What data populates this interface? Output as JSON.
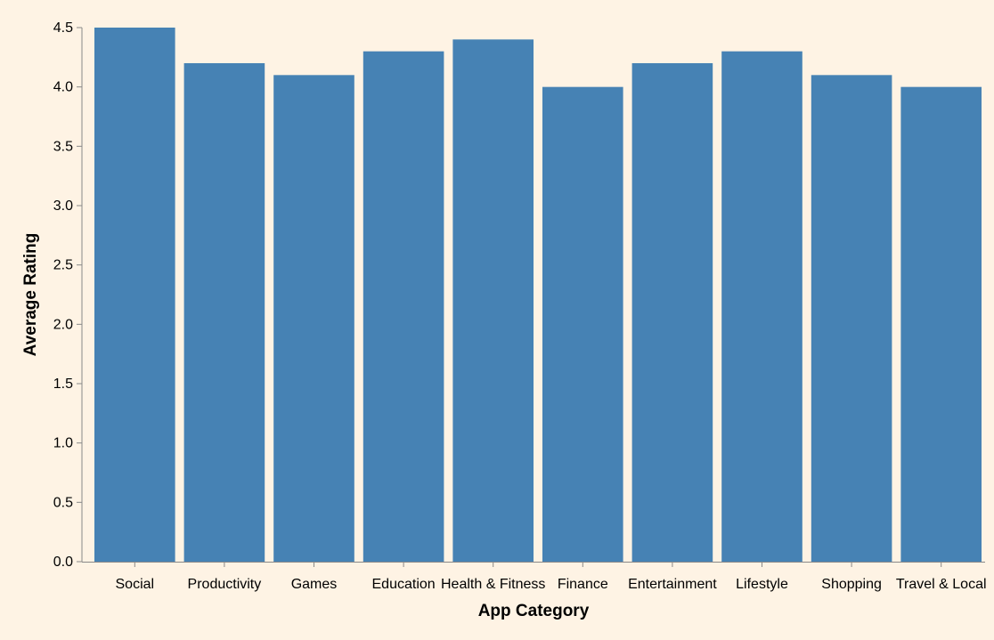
{
  "chart_data": {
    "type": "bar",
    "categories": [
      "Social",
      "Productivity",
      "Games",
      "Education",
      "Health & Fitness",
      "Finance",
      "Entertainment",
      "Lifestyle",
      "Shopping",
      "Travel & Local"
    ],
    "values": [
      4.5,
      4.2,
      4.1,
      4.3,
      4.4,
      4.0,
      4.2,
      4.3,
      4.1,
      4.0
    ],
    "xlabel": "App Category",
    "ylabel": "Average Rating",
    "ylim": [
      0,
      4.5
    ],
    "yticks": [
      "0.0",
      "0.5",
      "1.0",
      "1.5",
      "2.0",
      "2.5",
      "3.0",
      "3.5",
      "4.0",
      "4.5"
    ],
    "grid": false,
    "colors": {
      "bar": "#4682b4",
      "background": "#fef3e4",
      "axis": "#888888"
    }
  }
}
